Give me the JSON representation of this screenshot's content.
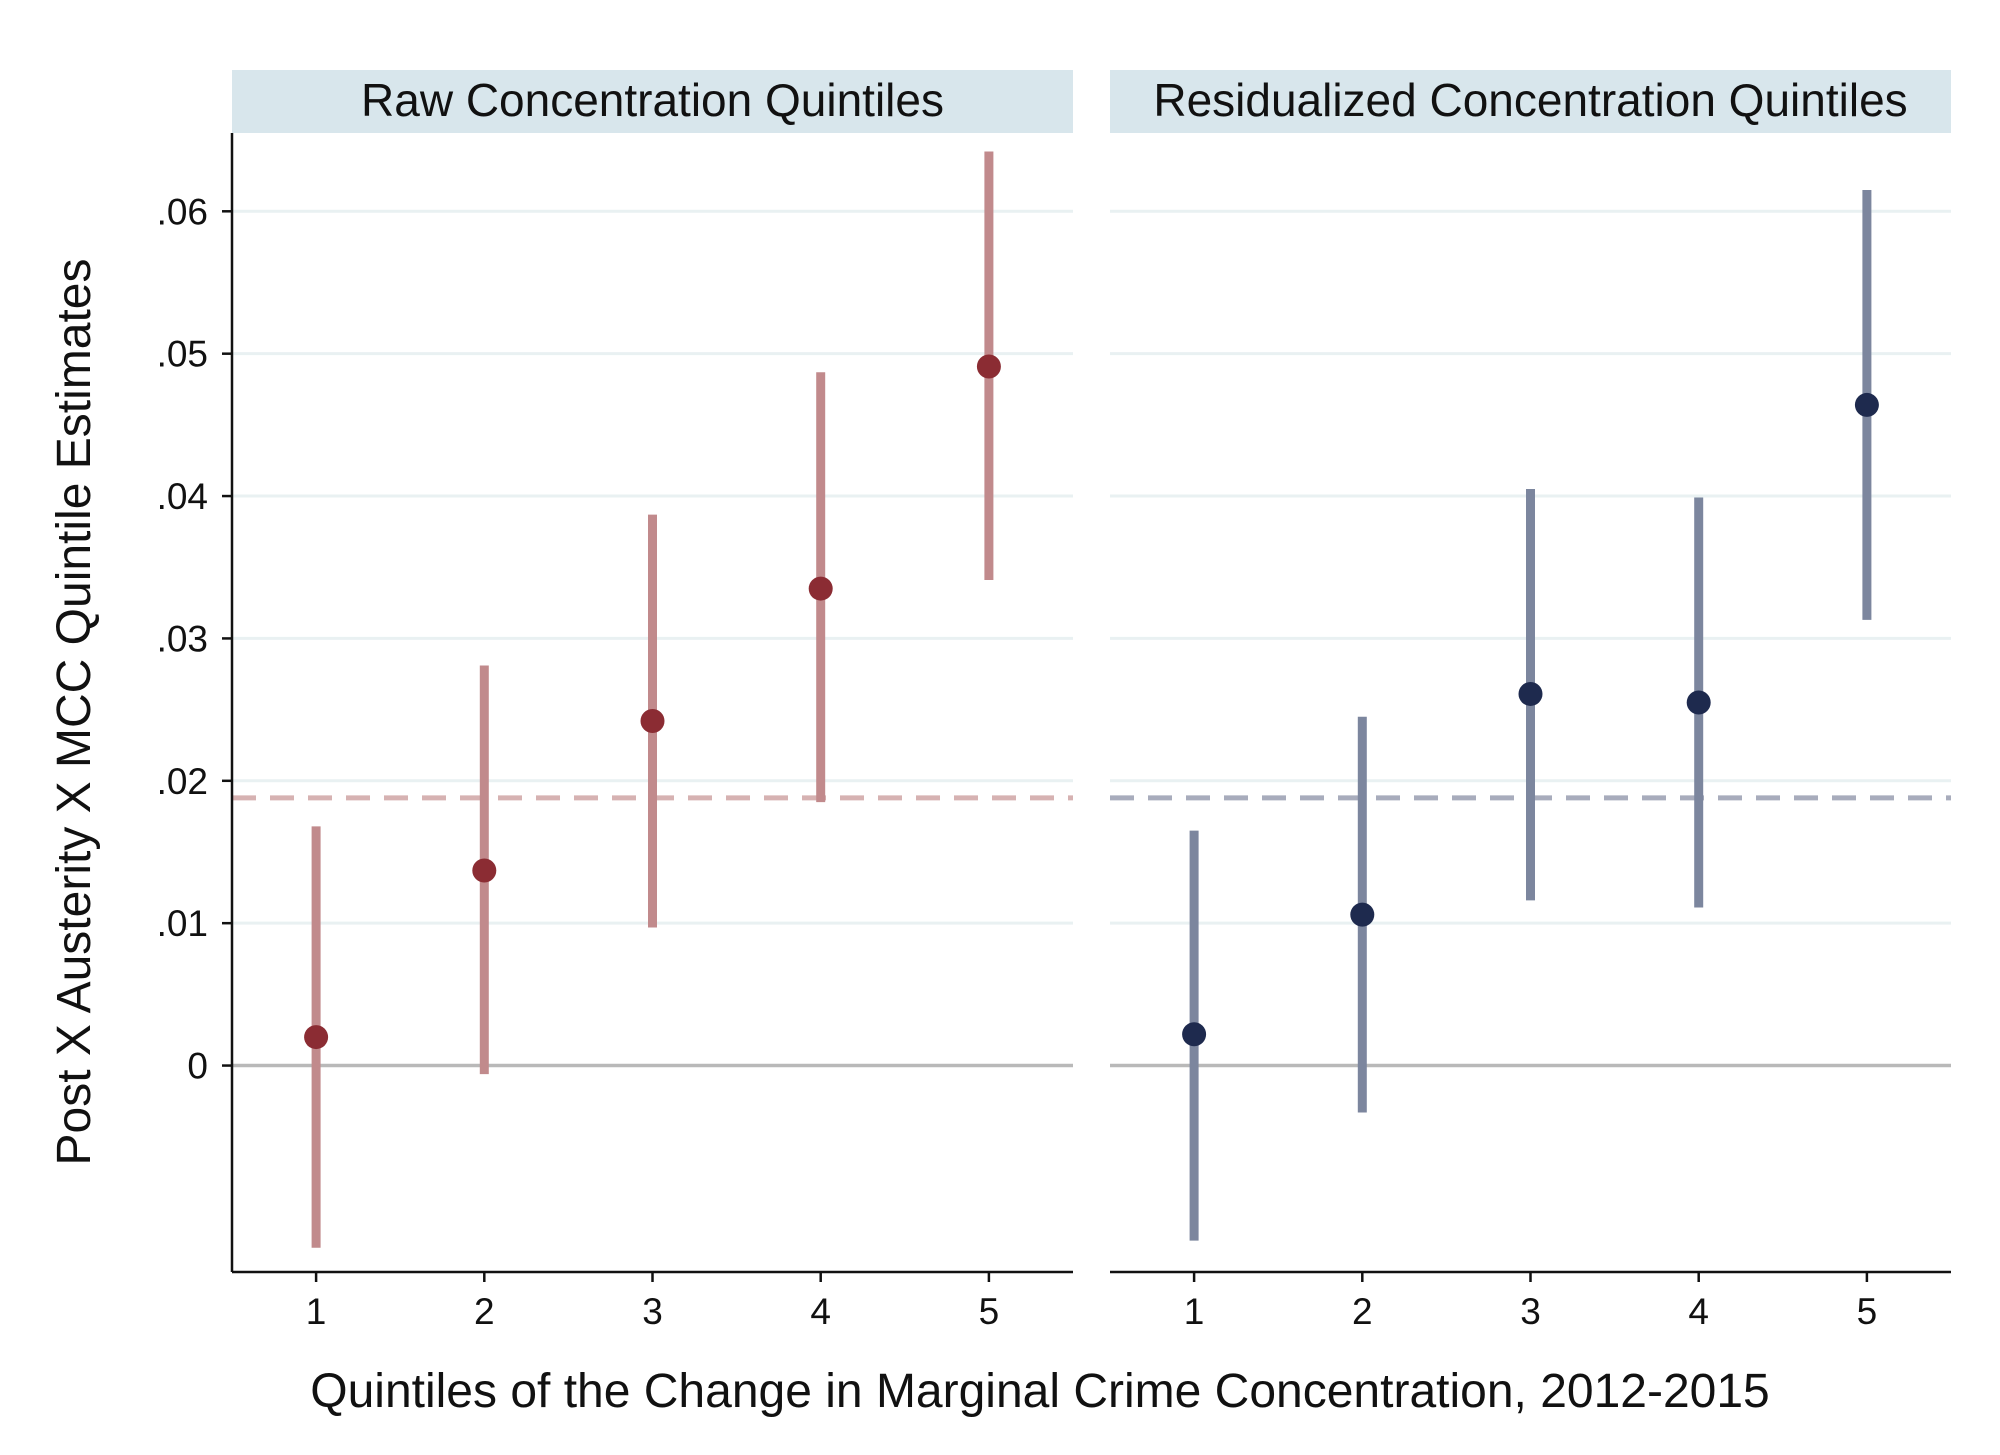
{
  "chart_data": {
    "type": "scatter",
    "subtype": "coefficient-plot-with-confidence-intervals",
    "ylabel": "Post X Austerity X MCC Quintile Estimates",
    "xlabel": "Quintiles of the Change in Marginal Crime Concentration, 2012-2015",
    "ylim": [
      -0.0145,
      0.0655
    ],
    "yticks": [
      {
        "value": 0,
        "label": "0"
      },
      {
        "value": 0.01,
        "label": ".01"
      },
      {
        "value": 0.02,
        "label": ".02"
      },
      {
        "value": 0.03,
        "label": ".03"
      },
      {
        "value": 0.04,
        "label": ".04"
      },
      {
        "value": 0.05,
        "label": ".05"
      },
      {
        "value": 0.06,
        "label": ".06"
      }
    ],
    "xlim": [
      0.5,
      5.5
    ],
    "xticks": [
      "1",
      "2",
      "3",
      "4",
      "5"
    ],
    "grid": true,
    "panels": [
      {
        "title": "Raw Concentration Quintiles",
        "point_color": "#8b2c33",
        "ci_color": "#c18a8c",
        "reference_line": {
          "value": 0.0188,
          "color": "#d6b2b2",
          "style": "dashed"
        },
        "x": [
          1,
          2,
          3,
          4,
          5
        ],
        "estimates": [
          0.002,
          0.0137,
          0.0242,
          0.0335,
          0.0491
        ],
        "ci_low": [
          -0.0128,
          -0.0006,
          0.0097,
          0.0185,
          0.0341
        ],
        "ci_high": [
          0.0168,
          0.0281,
          0.0387,
          0.0487,
          0.0642
        ]
      },
      {
        "title": "Residualized Concentration Quintiles",
        "point_color": "#1e2a4e",
        "ci_color": "#7c869e",
        "reference_line": {
          "value": 0.0188,
          "color": "#a8acbc",
          "style": "dashed"
        },
        "x": [
          1,
          2,
          3,
          4,
          5
        ],
        "estimates": [
          0.0022,
          0.0106,
          0.0261,
          0.0255,
          0.0464
        ],
        "ci_low": [
          -0.0123,
          -0.0033,
          0.0116,
          0.0111,
          0.0313
        ],
        "ci_high": [
          0.0165,
          0.0245,
          0.0405,
          0.0399,
          0.0615
        ]
      }
    ]
  }
}
